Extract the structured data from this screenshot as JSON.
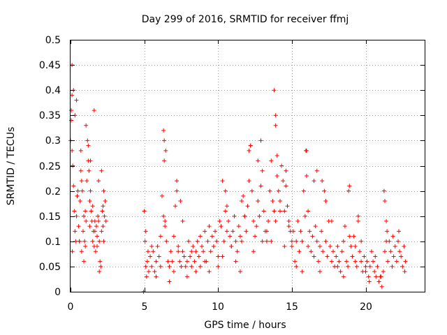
{
  "chart_data": {
    "type": "scatter",
    "title": "Day 299 of 2016, SRMTID for receiver ffmj",
    "xlabel": "GPS time / hours",
    "ylabel": "SRMTID / TECUs",
    "xlim": [
      0,
      24
    ],
    "ylim": [
      0,
      0.5
    ],
    "xticks": [
      0,
      5,
      10,
      15,
      20
    ],
    "xtick_labels": [
      "0",
      "5",
      "10",
      "15",
      "20"
    ],
    "yticks": [
      0,
      0.05,
      0.1,
      0.15,
      0.2,
      0.25,
      0.3,
      0.35,
      0.4,
      0.45,
      0.5
    ],
    "ytick_labels": [
      "0",
      "0.05",
      "0.1",
      "0.15",
      "0.2",
      "0.25",
      "0.3",
      "0.35",
      "0.4",
      "0.45",
      "0.5"
    ],
    "grid": true,
    "marker": "+",
    "color": "#ff0000",
    "series": [
      {
        "name": "SRMTID",
        "x": [
          0.0,
          0.05,
          0.1,
          0.1,
          0.15,
          0.2,
          0.25,
          0.3,
          0.35,
          0.4,
          0.45,
          0.5,
          0.55,
          0.6,
          0.65,
          0.7,
          0.75,
          0.8,
          0.85,
          0.9,
          0.95,
          1.0,
          1.05,
          1.1,
          1.15,
          1.2,
          1.25,
          1.3,
          1.35,
          1.4,
          1.45,
          1.5,
          1.55,
          1.6,
          1.65,
          1.7,
          1.75,
          1.8,
          1.85,
          1.9,
          1.95,
          2.0,
          2.05,
          2.1,
          2.15,
          2.2,
          2.25,
          2.3,
          2.35,
          2.4,
          0.05,
          0.1,
          0.2,
          0.3,
          0.45,
          0.6,
          0.75,
          0.9,
          1.05,
          1.2,
          1.35,
          1.5,
          1.65,
          1.8,
          1.95,
          2.1,
          2.25,
          0.12,
          0.4,
          0.7,
          1.0,
          1.3,
          1.6,
          1.9,
          2.2,
          4.95,
          5.0,
          5.05,
          5.1,
          5.15,
          5.2,
          5.3,
          5.4,
          5.5,
          5.6,
          5.7,
          5.8,
          5.9,
          6.0,
          6.1,
          6.2,
          6.3,
          6.35,
          6.4,
          6.5,
          6.6,
          6.7,
          6.8,
          6.9,
          7.0,
          7.1,
          7.2,
          7.3,
          7.4,
          7.5,
          7.6,
          7.7,
          7.8,
          7.9,
          8.0,
          8.1,
          8.2,
          8.3,
          8.4,
          8.5,
          8.6,
          8.7,
          8.8,
          8.9,
          9.0,
          9.1,
          9.2,
          9.3,
          9.4,
          9.5,
          9.6,
          9.7,
          9.8,
          9.9,
          10.0,
          5.5,
          5.8,
          6.1,
          6.4,
          6.7,
          7.0,
          7.3,
          7.6,
          7.9,
          8.2,
          8.5,
          8.8,
          9.1,
          9.4,
          9.7,
          6.3,
          6.35,
          6.45,
          5.1,
          5.25,
          7.2,
          7.45,
          10.0,
          10.1,
          10.2,
          10.3,
          10.4,
          10.5,
          10.6,
          10.7,
          10.8,
          10.9,
          11.0,
          11.1,
          11.2,
          11.3,
          11.4,
          11.5,
          11.6,
          11.7,
          11.8,
          11.9,
          12.0,
          12.1,
          12.2,
          12.3,
          12.4,
          12.5,
          12.6,
          12.7,
          12.8,
          12.9,
          13.0,
          13.1,
          13.2,
          13.3,
          13.4,
          13.5,
          13.6,
          13.7,
          13.8,
          13.9,
          14.0,
          14.1,
          14.2,
          14.3,
          14.4,
          14.5,
          14.6,
          14.7,
          14.8,
          14.9,
          15.0,
          10.3,
          10.6,
          10.9,
          11.2,
          11.5,
          11.8,
          12.1,
          12.4,
          12.7,
          13.0,
          13.3,
          13.6,
          13.9,
          14.2,
          14.5,
          14.8,
          12.2,
          12.9,
          13.8,
          13.9,
          14.0,
          14.6,
          10.5,
          11.6,
          15.0,
          15.1,
          15.2,
          15.3,
          15.4,
          15.5,
          15.6,
          15.7,
          15.8,
          15.9,
          16.0,
          16.1,
          16.2,
          16.3,
          16.4,
          16.5,
          16.6,
          16.7,
          16.8,
          16.9,
          17.0,
          17.1,
          17.2,
          17.3,
          17.4,
          17.5,
          17.6,
          17.7,
          17.8,
          17.9,
          18.0,
          18.1,
          18.2,
          18.3,
          18.4,
          18.5,
          18.6,
          18.7,
          18.8,
          18.9,
          19.0,
          19.1,
          19.2,
          19.3,
          19.4,
          19.5,
          19.6,
          19.7,
          19.8,
          19.9,
          20.0,
          15.3,
          15.7,
          16.1,
          16.5,
          16.9,
          17.3,
          17.7,
          18.1,
          18.5,
          18.9,
          19.3,
          19.7,
          15.95,
          16.0,
          16.7,
          17.05,
          18.85,
          19.5,
          20.0,
          20.1,
          20.2,
          20.3,
          20.4,
          20.5,
          20.6,
          20.7,
          20.8,
          20.9,
          21.0,
          21.1,
          21.2,
          21.3,
          21.4,
          21.5,
          21.6,
          21.7,
          21.8,
          21.9,
          22.0,
          22.1,
          22.2,
          22.3,
          22.4,
          22.5,
          22.6,
          22.7,
          20.25,
          20.65,
          21.05,
          21.25,
          21.45,
          21.85,
          22.25,
          22.65,
          21.3,
          21.4
        ],
        "y": [
          0.3,
          0.36,
          0.39,
          0.28,
          0.25,
          0.21,
          0.16,
          0.12,
          0.1,
          0.15,
          0.19,
          0.2,
          0.13,
          0.1,
          0.18,
          0.24,
          0.22,
          0.2,
          0.12,
          0.15,
          0.1,
          0.16,
          0.14,
          0.22,
          0.3,
          0.26,
          0.24,
          0.18,
          0.2,
          0.16,
          0.14,
          0.1,
          0.12,
          0.09,
          0.14,
          0.08,
          0.13,
          0.11,
          0.15,
          0.14,
          0.1,
          0.06,
          0.05,
          0.12,
          0.16,
          0.13,
          0.2,
          0.15,
          0.18,
          0.14,
          0.34,
          0.45,
          0.4,
          0.35,
          0.19,
          0.1,
          0.08,
          0.06,
          0.33,
          0.29,
          0.26,
          0.17,
          0.12,
          0.09,
          0.04,
          0.24,
          0.1,
          0.08,
          0.38,
          0.28,
          0.09,
          0.13,
          0.36,
          0.22,
          0.17,
          0.0,
          0.16,
          0.1,
          0.05,
          0.03,
          0.06,
          0.04,
          0.07,
          0.05,
          0.08,
          0.04,
          0.06,
          0.09,
          0.07,
          0.11,
          0.19,
          0.15,
          0.3,
          0.13,
          0.1,
          0.06,
          0.05,
          0.08,
          0.06,
          0.04,
          0.17,
          0.2,
          0.09,
          0.06,
          0.05,
          0.08,
          0.07,
          0.05,
          0.06,
          0.1,
          0.07,
          0.05,
          0.09,
          0.06,
          0.08,
          0.1,
          0.07,
          0.11,
          0.09,
          0.08,
          0.12,
          0.06,
          0.1,
          0.13,
          0.08,
          0.11,
          0.09,
          0.12,
          0.1,
          0.07,
          0.09,
          0.03,
          0.05,
          0.14,
          0.02,
          0.11,
          0.08,
          0.14,
          0.03,
          0.08,
          0.04,
          0.05,
          0.06,
          0.04,
          0.09,
          0.32,
          0.26,
          0.28,
          0.12,
          0.08,
          0.22,
          0.18,
          0.05,
          0.14,
          0.13,
          0.22,
          0.1,
          0.16,
          0.12,
          0.14,
          0.11,
          0.09,
          0.12,
          0.15,
          0.1,
          0.08,
          0.13,
          0.04,
          0.1,
          0.19,
          0.15,
          0.12,
          0.17,
          0.22,
          0.29,
          0.2,
          0.14,
          0.11,
          0.13,
          0.18,
          0.15,
          0.21,
          0.24,
          0.16,
          0.12,
          0.1,
          0.14,
          0.2,
          0.26,
          0.18,
          0.16,
          0.14,
          0.23,
          0.2,
          0.18,
          0.25,
          0.22,
          0.16,
          0.21,
          0.17,
          0.14,
          0.12,
          0.1,
          0.07,
          0.17,
          0.09,
          0.06,
          0.11,
          0.15,
          0.28,
          0.08,
          0.26,
          0.1,
          0.12,
          0.1,
          0.33,
          0.16,
          0.09,
          0.13,
          0.29,
          0.3,
          0.4,
          0.35,
          0.27,
          0.24,
          0.2,
          0.18,
          0.09,
          0.12,
          0.06,
          0.1,
          0.14,
          0.08,
          0.12,
          0.1,
          0.2,
          0.15,
          0.28,
          0.09,
          0.12,
          0.08,
          0.11,
          0.07,
          0.13,
          0.1,
          0.06,
          0.09,
          0.12,
          0.08,
          0.2,
          0.1,
          0.07,
          0.14,
          0.09,
          0.06,
          0.08,
          0.05,
          0.07,
          0.09,
          0.06,
          0.04,
          0.08,
          0.1,
          0.13,
          0.06,
          0.05,
          0.21,
          0.09,
          0.07,
          0.11,
          0.06,
          0.05,
          0.14,
          0.08,
          0.06,
          0.04,
          0.07,
          0.05,
          0.05,
          0.04,
          0.16,
          0.22,
          0.04,
          0.18,
          0.14,
          0.05,
          0.03,
          0.11,
          0.09,
          0.1,
          0.28,
          0.23,
          0.24,
          0.22,
          0.2,
          0.15,
          0.04,
          0.06,
          0.03,
          0.05,
          0.08,
          0.06,
          0.04,
          0.03,
          0.05,
          0.02,
          0.03,
          0.01,
          0.04,
          0.08,
          0.14,
          0.06,
          0.1,
          0.08,
          0.05,
          0.07,
          0.09,
          0.06,
          0.1,
          0.08,
          0.07,
          0.05,
          0.09,
          0.06,
          0.02,
          0.07,
          0.03,
          0.2,
          0.12,
          0.11,
          0.12,
          0.04,
          0.18,
          0.1
        ]
      }
    ]
  }
}
